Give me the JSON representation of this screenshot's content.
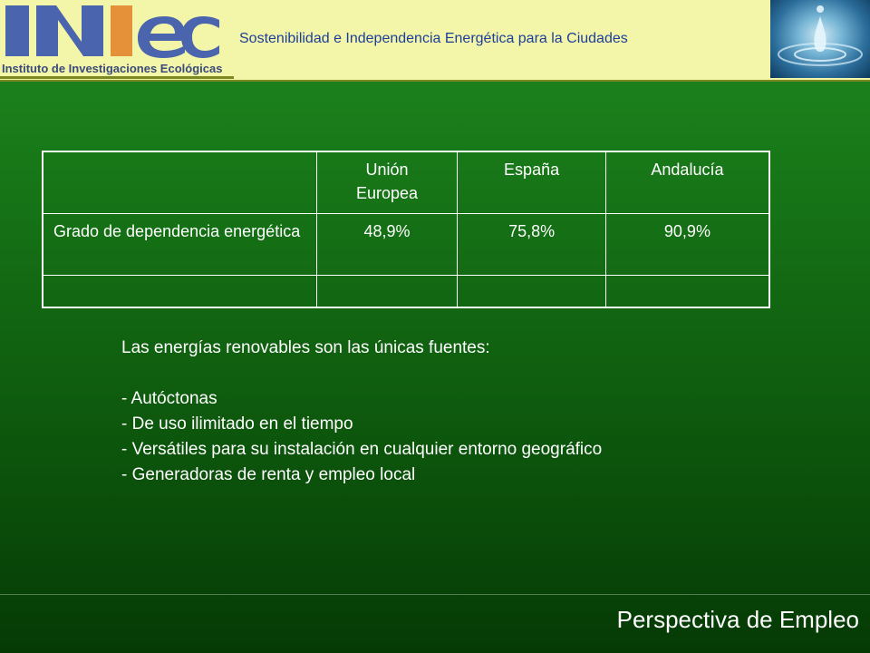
{
  "header": {
    "logo_text": "Instituto de Investigaciones Ecológicas",
    "tagline": "Sostenibilidad e Independencia Energética para la Ciudades"
  },
  "table": {
    "headers": [
      "",
      "Unión\nEuropea",
      "España",
      "Andalucía"
    ],
    "rows": [
      {
        "label": "Grado de dependencia energética",
        "values": [
          "48,9%",
          "75,8%",
          "90,9%"
        ]
      },
      {
        "label": "",
        "values": [
          "",
          "",
          ""
        ]
      }
    ]
  },
  "content": {
    "intro": "Las energías renovables son las únicas fuentes:",
    "bullets": [
      "- Autóctonas",
      "- De uso ilimitado en el tiempo",
      "- Versátiles para su instalación en cualquier entorno geográfico",
      "- Generadoras de renta y empleo local"
    ]
  },
  "footer": {
    "section_title": "Perspectiva de Empleo"
  }
}
